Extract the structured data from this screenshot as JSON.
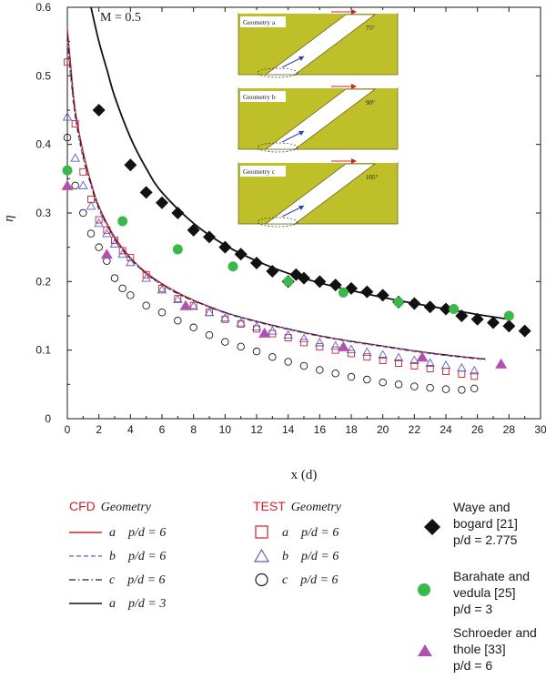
{
  "chart_data": {
    "type": "scatter",
    "annotation": "M = 0.5",
    "xlabel": "x (d)",
    "ylabel": "η",
    "xlim": [
      0,
      30
    ],
    "ylim": [
      0,
      0.6
    ],
    "x_ticks": [
      "0",
      "2",
      "4",
      "6",
      "8",
      "10",
      "12",
      "14",
      "16",
      "18",
      "20",
      "22",
      "24",
      "26",
      "28",
      "30"
    ],
    "y_ticks": [
      "0",
      "0.1",
      "0.2",
      "0.3",
      "0.4",
      "0.5",
      "0.6"
    ],
    "inset": {
      "panels": [
        {
          "label": "Geometry a",
          "angle": "75°"
        },
        {
          "label": "Geometry b",
          "angle": "90°"
        },
        {
          "label": "Geometry c",
          "angle": "105°"
        }
      ]
    },
    "series": [
      {
        "name": "CFD a p/d = 6",
        "kind": "line",
        "style": "solid",
        "color": "#d0202a",
        "x": [
          0,
          0.2,
          0.5,
          1,
          1.5,
          2,
          3,
          4,
          5,
          6,
          7,
          8,
          10,
          12,
          14,
          16,
          18,
          20,
          22,
          24,
          26.5
        ],
        "y": [
          0.57,
          0.52,
          0.45,
          0.39,
          0.345,
          0.31,
          0.265,
          0.235,
          0.213,
          0.197,
          0.184,
          0.173,
          0.155,
          0.142,
          0.131,
          0.121,
          0.113,
          0.106,
          0.099,
          0.093,
          0.087
        ]
      },
      {
        "name": "CFD b p/d = 6",
        "kind": "line",
        "style": "dashed",
        "color": "#5a5ec8",
        "x": [
          0,
          0.2,
          0.5,
          1,
          1.5,
          2,
          3,
          4,
          5,
          6,
          7,
          8,
          10,
          12,
          14,
          16,
          18,
          20,
          22,
          24,
          26.5
        ],
        "y": [
          0.55,
          0.5,
          0.44,
          0.38,
          0.34,
          0.305,
          0.262,
          0.233,
          0.211,
          0.195,
          0.182,
          0.172,
          0.154,
          0.141,
          0.13,
          0.12,
          0.112,
          0.105,
          0.098,
          0.092,
          0.086
        ]
      },
      {
        "name": "CFD c p/d = 6",
        "kind": "line",
        "style": "dashdot",
        "color": "#222222",
        "x": [
          0,
          0.2,
          0.5,
          1,
          1.5,
          2,
          3,
          4,
          5,
          6,
          7,
          8,
          10,
          12,
          14,
          16,
          18,
          20,
          22,
          24,
          26.5
        ],
        "y": [
          0.56,
          0.51,
          0.445,
          0.385,
          0.342,
          0.308,
          0.263,
          0.234,
          0.212,
          0.196,
          0.183,
          0.172,
          0.155,
          0.142,
          0.131,
          0.121,
          0.113,
          0.106,
          0.099,
          0.093,
          0.087
        ]
      },
      {
        "name": "CFD a p/d = 3",
        "kind": "line",
        "style": "solid",
        "color": "#111111",
        "x": [
          1.5,
          2,
          2.5,
          3,
          4,
          5,
          6,
          8,
          10,
          12,
          14,
          16,
          18,
          20,
          22,
          24,
          26,
          28
        ],
        "y": [
          0.6,
          0.55,
          0.51,
          0.47,
          0.41,
          0.365,
          0.33,
          0.285,
          0.253,
          0.23,
          0.212,
          0.198,
          0.187,
          0.177,
          0.168,
          0.16,
          0.152,
          0.145
        ]
      },
      {
        "name": "TEST a p/d = 6",
        "kind": "marker",
        "marker": "square",
        "color": "#d0202a",
        "x": [
          0,
          0.5,
          1,
          1.5,
          2,
          2.5,
          3,
          3.5,
          4,
          5,
          6,
          7,
          8,
          9,
          10,
          11,
          12,
          13,
          14,
          15,
          16,
          17,
          18,
          19,
          20,
          21,
          22,
          23,
          24,
          25,
          25.8
        ],
        "y": [
          0.52,
          0.43,
          0.36,
          0.32,
          0.29,
          0.275,
          0.26,
          0.245,
          0.235,
          0.21,
          0.19,
          0.175,
          0.165,
          0.155,
          0.145,
          0.138,
          0.131,
          0.124,
          0.118,
          0.111,
          0.105,
          0.1,
          0.095,
          0.09,
          0.085,
          0.081,
          0.077,
          0.073,
          0.069,
          0.065,
          0.062
        ]
      },
      {
        "name": "TEST b p/d = 6",
        "kind": "marker",
        "marker": "triangle",
        "color": "#5a5ec8",
        "x": [
          0,
          0.5,
          1,
          1.5,
          2,
          2.5,
          3,
          3.5,
          4,
          5,
          6,
          7,
          8,
          9,
          10,
          11,
          12,
          13,
          14,
          15,
          16,
          17,
          18,
          19,
          20,
          21,
          22,
          23,
          24,
          25,
          25.8
        ],
        "y": [
          0.44,
          0.38,
          0.34,
          0.31,
          0.285,
          0.27,
          0.255,
          0.24,
          0.228,
          0.205,
          0.188,
          0.174,
          0.164,
          0.155,
          0.147,
          0.14,
          0.134,
          0.128,
          0.122,
          0.117,
          0.111,
          0.106,
          0.101,
          0.097,
          0.093,
          0.089,
          0.085,
          0.081,
          0.078,
          0.074,
          0.07
        ]
      },
      {
        "name": "TEST c p/d = 6",
        "kind": "marker",
        "marker": "circle",
        "color": "#1a1a1a",
        "x": [
          0,
          0.5,
          1,
          1.5,
          2,
          2.5,
          3,
          3.5,
          4,
          5,
          6,
          7,
          8,
          9,
          10,
          11,
          12,
          13,
          14,
          15,
          16,
          17,
          18,
          19,
          20,
          21,
          22,
          23,
          24,
          25,
          25.8
        ],
        "y": [
          0.41,
          0.34,
          0.3,
          0.27,
          0.25,
          0.23,
          0.205,
          0.19,
          0.18,
          0.165,
          0.155,
          0.143,
          0.133,
          0.122,
          0.112,
          0.105,
          0.098,
          0.09,
          0.083,
          0.077,
          0.071,
          0.066,
          0.061,
          0.057,
          0.053,
          0.05,
          0.047,
          0.045,
          0.043,
          0.042,
          0.044
        ]
      },
      {
        "name": "Waye and bogard [21] p/d = 2.775",
        "kind": "marker",
        "marker": "diamond",
        "color": "#111111",
        "x": [
          2,
          4,
          5,
          6,
          7,
          8,
          9,
          10,
          11,
          12,
          13,
          14,
          14.5,
          15,
          16,
          17,
          18,
          19,
          20,
          21,
          22,
          23,
          24,
          25,
          26,
          27,
          28,
          29
        ],
        "y": [
          0.45,
          0.37,
          0.33,
          0.315,
          0.3,
          0.275,
          0.265,
          0.25,
          0.24,
          0.227,
          0.215,
          0.2,
          0.21,
          0.205,
          0.2,
          0.195,
          0.19,
          0.185,
          0.18,
          0.17,
          0.168,
          0.163,
          0.16,
          0.15,
          0.145,
          0.14,
          0.135,
          0.128
        ]
      },
      {
        "name": "Barahate and vedula [25] p/d = 3",
        "kind": "marker",
        "marker": "filled-circle",
        "color": "#3cb84a",
        "x": [
          0,
          3.5,
          7,
          10.5,
          14,
          17.5,
          21,
          24.5,
          28
        ],
        "y": [
          0.362,
          0.288,
          0.247,
          0.222,
          0.2,
          0.184,
          0.17,
          0.16,
          0.15
        ]
      },
      {
        "name": "Schroeder and thole [33] p/d = 6",
        "kind": "marker",
        "marker": "filled-triangle",
        "color": "#b24fb0",
        "x": [
          0,
          2.5,
          7.5,
          12.5,
          17.5,
          22.5,
          27.5
        ],
        "y": [
          0.34,
          0.24,
          0.165,
          0.125,
          0.105,
          0.09,
          0.08
        ]
      }
    ]
  },
  "legend": {
    "cfd_header": "CFD",
    "cfd_geometry": "Geometry",
    "test_header": "TEST",
    "test_geometry": "Geometry",
    "cfd_rows": [
      {
        "geo": "a",
        "pd": "p/d = 6"
      },
      {
        "geo": "b",
        "pd": "p/d = 6"
      },
      {
        "geo": "c",
        "pd": "p/d = 6"
      },
      {
        "geo": "a",
        "pd": "p/d = 3"
      }
    ],
    "test_rows": [
      {
        "geo": "a",
        "pd": "p/d = 6"
      },
      {
        "geo": "b",
        "pd": "p/d = 6"
      },
      {
        "geo": "c",
        "pd": "p/d = 6"
      }
    ],
    "refs": [
      {
        "line1": "Waye and",
        "line2": "bogard [21]",
        "line3": "p/d = 2.775"
      },
      {
        "line1": "Barahate and",
        "line2": "vedula [25]",
        "line3": "p/d = 3"
      },
      {
        "line1": "Schroeder and",
        "line2": "thole [33]",
        "line3": "p/d = 6"
      }
    ]
  }
}
